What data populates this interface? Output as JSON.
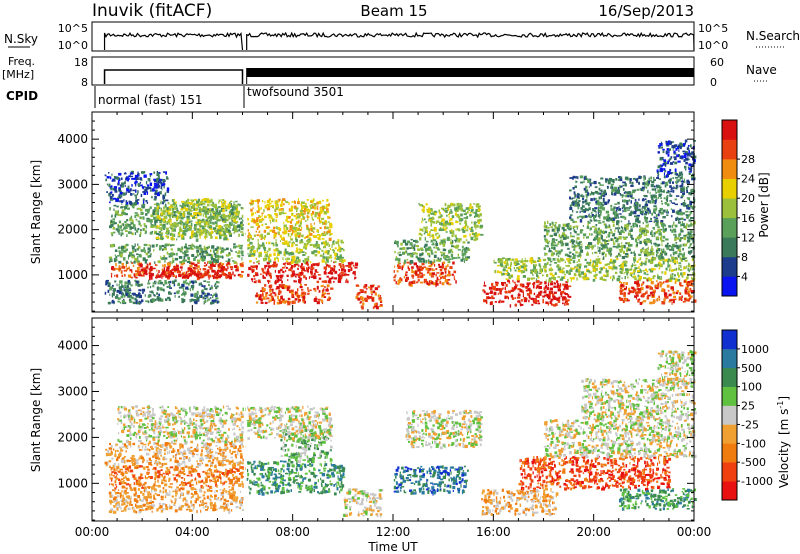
{
  "header": {
    "station": "Inuvik (fitACF)",
    "beam": "Beam 15",
    "date": "16/Sep/2013"
  },
  "colors": {
    "power": [
      "#0a14f0",
      "#1e3c8c",
      "#3a7a5a",
      "#5aa05a",
      "#9ac03c",
      "#e8d000",
      "#f08c10",
      "#e84010",
      "#d81010"
    ],
    "velocity": [
      "#e81010",
      "#f04010",
      "#f07c10",
      "#f0a030",
      "#c8c8c8",
      "#60c040",
      "#3a8a50",
      "#2a7aa0",
      "#1030d0"
    ]
  },
  "chart_data": [
    {
      "type": "line",
      "name": "sky-noise-panel",
      "ylabel": "N.Sky",
      "right_label": "N.Search",
      "left_ticks": [
        "10^5",
        "10^0"
      ],
      "right_ticks": [
        "10^5",
        "10^0"
      ],
      "segments": [
        {
          "x_start": "00:30",
          "x_end": "06:00",
          "level": "high"
        },
        {
          "x_start": "06:10",
          "x_end": "24:00",
          "level": "high"
        }
      ]
    },
    {
      "type": "line",
      "name": "frequency-panel",
      "ylabel": "Freq.",
      "ylabel_unit": "[MHz]",
      "right_label": "Nave",
      "left_ticks": [
        "18",
        "8"
      ],
      "right_ticks": [
        "60",
        "0"
      ],
      "segments": [
        {
          "x_start": "00:30",
          "x_end": "06:00",
          "level": 10
        },
        {
          "x_start": "06:10",
          "x_end": "24:00",
          "level": 10
        }
      ]
    },
    {
      "type": "table",
      "name": "cpid-strip",
      "label": "CPID",
      "modes": [
        {
          "start": "00:30",
          "text": "normal (fast) 151"
        },
        {
          "start": "06:10",
          "text": "twofsound 3501"
        }
      ]
    },
    {
      "type": "heatmap",
      "name": "power-panel",
      "ylabel": "Slant Range [km]",
      "yticks": [
        1000,
        2000,
        3000,
        4000
      ],
      "ylim": [
        180,
        4600
      ],
      "colorbar_label": "Power [dB]",
      "colorbar_ticks": [
        "4",
        "8",
        "12",
        "16",
        "20",
        "24",
        "28"
      ],
      "blobs": [
        {
          "x": "00:45",
          "x2": "06:00",
          "y": 950,
          "y2": 1300,
          "v": 7
        },
        {
          "x": "02:00",
          "x2": "05:30",
          "y": 950,
          "y2": 1200,
          "v": 8
        },
        {
          "x": "00:40",
          "x2": "06:00",
          "y": 1300,
          "y2": 1700,
          "v": 3
        },
        {
          "x": "00:40",
          "x2": "06:00",
          "y": 1900,
          "y2": 2600,
          "v": 3
        },
        {
          "x": "02:30",
          "x2": "05:45",
          "y": 1800,
          "y2": 2700,
          "v": 4
        },
        {
          "x": "00:30",
          "x2": "03:00",
          "y": 2600,
          "y2": 3300,
          "v": 1
        },
        {
          "x": "00:30",
          "x2": "05:00",
          "y": 400,
          "y2": 900,
          "v": 2
        },
        {
          "x": "06:10",
          "x2": "10:30",
          "y": 850,
          "y2": 1300,
          "v": 8
        },
        {
          "x": "06:30",
          "x2": "09:30",
          "y": 400,
          "y2": 800,
          "v": 7
        },
        {
          "x": "06:10",
          "x2": "09:30",
          "y": 1800,
          "y2": 2700,
          "v": 5
        },
        {
          "x": "06:10",
          "x2": "10:00",
          "y": 1300,
          "y2": 1800,
          "v": 4
        },
        {
          "x": "10:30",
          "x2": "11:30",
          "y": 300,
          "y2": 800,
          "v": 7
        },
        {
          "x": "12:00",
          "x2": "14:30",
          "y": 800,
          "y2": 1300,
          "v": 7
        },
        {
          "x": "13:00",
          "x2": "15:30",
          "y": 1800,
          "y2": 2600,
          "v": 4
        },
        {
          "x": "12:00",
          "x2": "15:00",
          "y": 1300,
          "y2": 1800,
          "v": 3
        },
        {
          "x": "15:30",
          "x2": "19:00",
          "y": 350,
          "y2": 900,
          "v": 8
        },
        {
          "x": "16:00",
          "x2": "24:00",
          "y": 900,
          "y2": 1400,
          "v": 4
        },
        {
          "x": "18:00",
          "x2": "24:00",
          "y": 1400,
          "y2": 2200,
          "v": 3
        },
        {
          "x": "19:00",
          "x2": "24:00",
          "y": 2200,
          "y2": 3200,
          "v": 2
        },
        {
          "x": "21:00",
          "x2": "24:00",
          "y": 400,
          "y2": 900,
          "v": 7
        },
        {
          "x": "22:30",
          "x2": "24:00",
          "y": 3200,
          "y2": 4000,
          "v": 1
        }
      ]
    },
    {
      "type": "heatmap",
      "name": "velocity-panel",
      "ylabel": "Slant Range [km]",
      "yticks": [
        1000,
        2000,
        3000,
        4000
      ],
      "ylim": [
        180,
        4600
      ],
      "colorbar_label": "Velocity",
      "colorbar_unit": "[m s",
      "colorbar_unit_exp": "-1",
      "colorbar_unit_end": "]",
      "colorbar_ticks": [
        "-1000",
        "-500",
        "-100",
        "-25",
        "25",
        "100",
        "500",
        "1000"
      ],
      "blobs": [
        {
          "x": "00:40",
          "x2": "06:00",
          "y": 900,
          "y2": 1400,
          "v": 2
        },
        {
          "x": "00:40",
          "x2": "06:00",
          "y": 400,
          "y2": 900,
          "v": 3
        },
        {
          "x": "01:00",
          "x2": "06:00",
          "y": 1900,
          "y2": 2700,
          "v": 4
        },
        {
          "x": "00:30",
          "x2": "06:00",
          "y": 1400,
          "y2": 1900,
          "v": 3
        },
        {
          "x": "06:10",
          "x2": "10:00",
          "y": 800,
          "y2": 1500,
          "v": 6
        },
        {
          "x": "07:30",
          "x2": "09:30",
          "y": 1500,
          "y2": 2200,
          "v": 5
        },
        {
          "x": "06:10",
          "x2": "09:30",
          "y": 2000,
          "y2": 2700,
          "v": 4
        },
        {
          "x": "10:00",
          "x2": "11:30",
          "y": 300,
          "y2": 900,
          "v": 4
        },
        {
          "x": "12:00",
          "x2": "15:00",
          "y": 800,
          "y2": 1400,
          "v": 7
        },
        {
          "x": "12:30",
          "x2": "15:30",
          "y": 1800,
          "y2": 2600,
          "v": 4
        },
        {
          "x": "15:30",
          "x2": "18:30",
          "y": 350,
          "y2": 900,
          "v": 3
        },
        {
          "x": "17:00",
          "x2": "23:00",
          "y": 900,
          "y2": 1600,
          "v": 1
        },
        {
          "x": "18:00",
          "x2": "24:00",
          "y": 1600,
          "y2": 2400,
          "v": 4
        },
        {
          "x": "19:30",
          "x2": "24:00",
          "y": 2400,
          "y2": 3300,
          "v": 4
        },
        {
          "x": "21:00",
          "x2": "24:00",
          "y": 450,
          "y2": 900,
          "v": 6
        },
        {
          "x": "22:30",
          "x2": "24:00",
          "y": 3200,
          "y2": 3900,
          "v": 4
        }
      ]
    }
  ],
  "xaxis": {
    "label": "Time UT",
    "ticks": [
      "00:00",
      "04:00",
      "08:00",
      "12:00",
      "16:00",
      "20:00",
      "00:00"
    ],
    "xlim": [
      "00:00",
      "24:00"
    ]
  }
}
